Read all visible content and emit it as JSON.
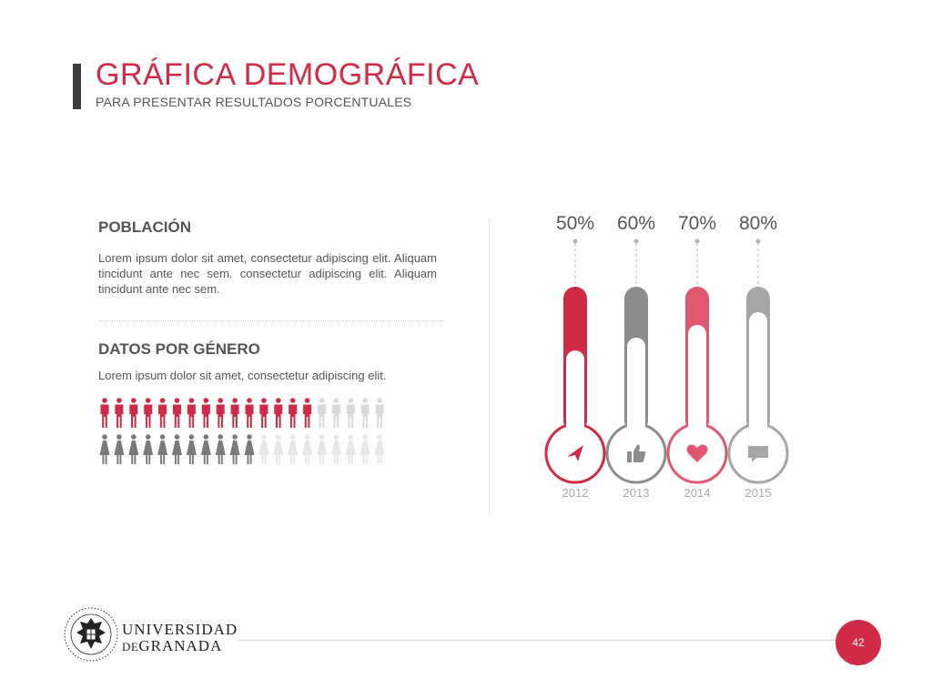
{
  "header": {
    "title": "GRÁFICA DEMOGRÁFICA",
    "subtitle": "PARA PRESENTAR RESULTADOS PORCENTUALES"
  },
  "poblacion": {
    "title": "POBLACIÓN",
    "text": "Lorem ipsum dolor sit amet, consectetur adipiscing elit. Aliquam tincidunt ante nec sem. consectetur adipiscing elit. Aliquam tincidunt ante nec sem."
  },
  "genero": {
    "title": "DATOS POR GÉNERO",
    "text": "Lorem ipsum dolor sit amet, consectetur adipiscing elit.",
    "men": {
      "total": 20,
      "highlighted": 15,
      "color": "#d12a47",
      "muted_color": "#d9d9d9"
    },
    "women": {
      "total": 20,
      "highlighted": 11,
      "color": "#7a7a7a",
      "muted_color": "#e6e6e6"
    }
  },
  "footer": {
    "university_line1": "UNIVERSIDAD",
    "university_line2_prefix": "DE",
    "university_line2": "GRANADA",
    "page_number": "42"
  },
  "colors": {
    "red": "#d12a47",
    "pink": "#e05770",
    "gray": "#8c8c8c",
    "light_gray": "#a6a6a6"
  },
  "chart_data": {
    "type": "bar",
    "style": "thermometer",
    "categories": [
      "2012",
      "2013",
      "2014",
      "2015"
    ],
    "values": [
      50,
      60,
      70,
      80
    ],
    "value_labels": [
      "50%",
      "60%",
      "70%",
      "80%"
    ],
    "ylim": [
      0,
      100
    ],
    "colors": [
      "#d12a47",
      "#8c8c8c",
      "#e05770",
      "#a6a6a6"
    ],
    "icons": [
      "send-icon",
      "thumbs-up-icon",
      "heart-icon",
      "chat-bubble-icon"
    ],
    "grid": false,
    "legend": "none"
  }
}
